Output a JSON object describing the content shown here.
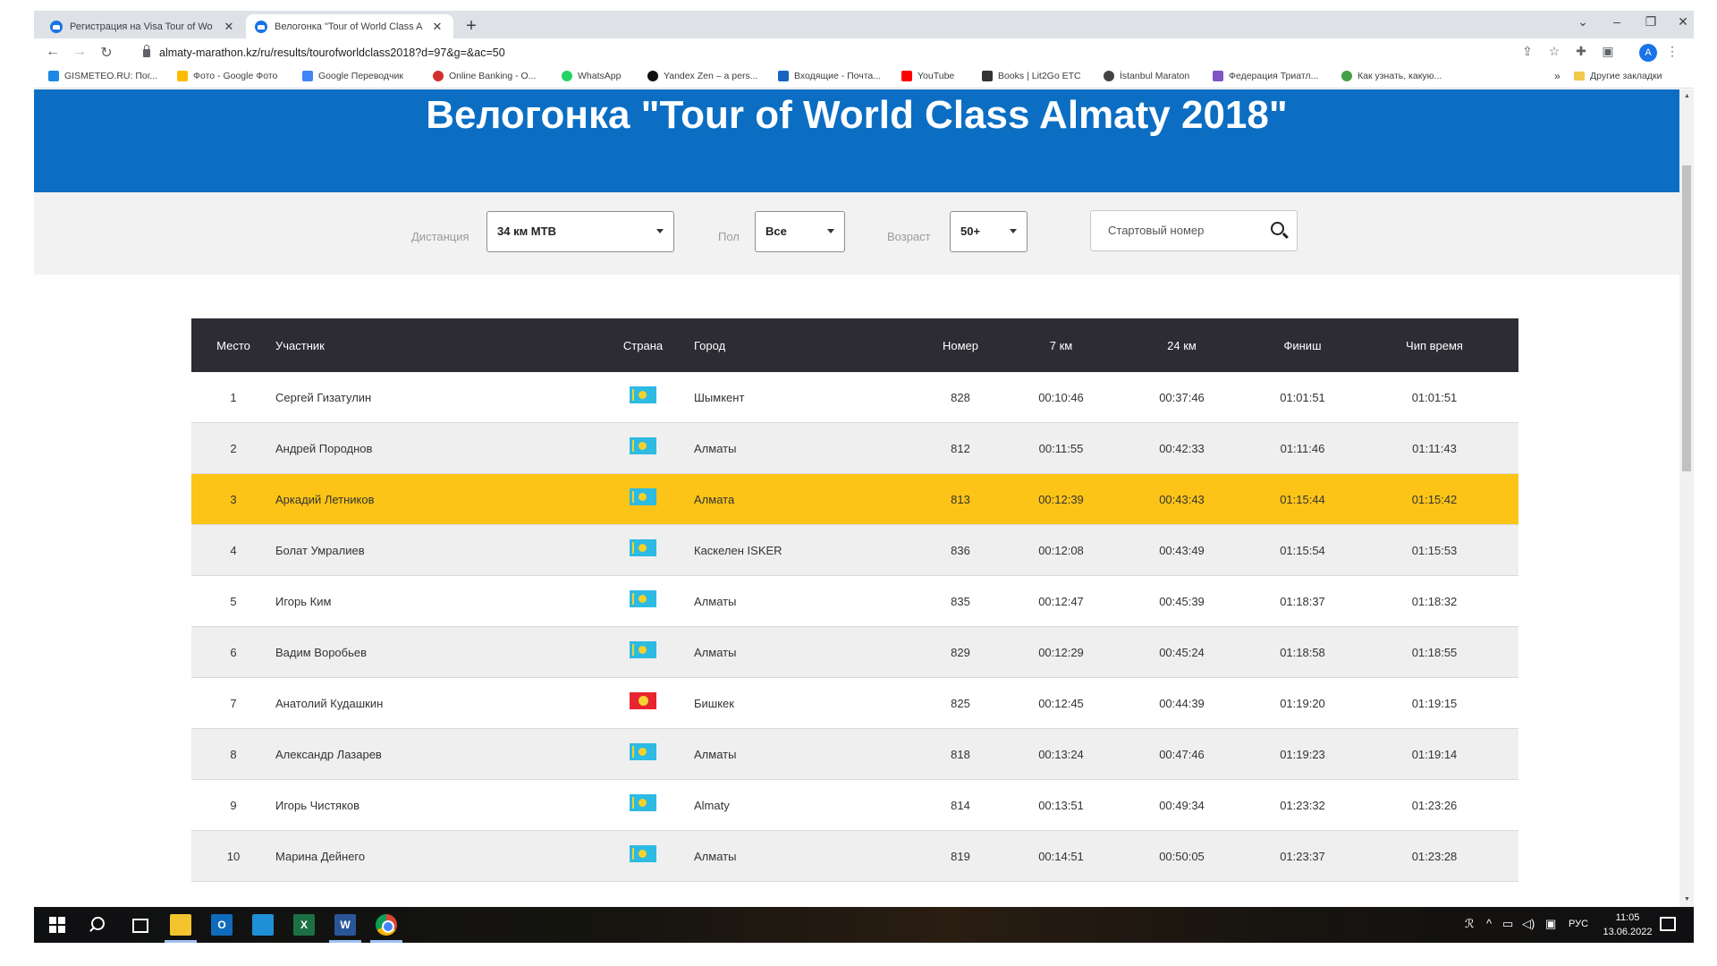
{
  "browser": {
    "tabs": [
      {
        "label": "Регистрация на Visa Tour of Wo"
      },
      {
        "label": "Велогонка \"Tour of World Class A"
      }
    ],
    "new_tab": "+",
    "url": "almaty-marathon.kz/ru/results/tourofworldclass2018?d=97&g=&ac=50",
    "avatar_letter": "A",
    "bookmarks": [
      {
        "label": "GISMETEO.RU: Пог...",
        "color": "#1e88e5"
      },
      {
        "label": "Фото - Google Фото",
        "color": "#fbbc04"
      },
      {
        "label": "Google Переводчик",
        "color": "#4285f4"
      },
      {
        "label": "Online Banking - О...",
        "color": "#d32f2f"
      },
      {
        "label": "WhatsApp",
        "color": "#25d366"
      },
      {
        "label": "Yandex Zen – a pers...",
        "color": "#111111"
      },
      {
        "label": "Входящие - Почта...",
        "color": "#1565c0"
      },
      {
        "label": "YouTube",
        "color": "#ff0000"
      },
      {
        "label": "Books | Lit2Go ETC",
        "color": "#333333"
      },
      {
        "label": "İstanbul Maraton",
        "color": "#444444"
      },
      {
        "label": "Федерация Триатл...",
        "color": "#7e57c2"
      },
      {
        "label": "Как узнать, какую...",
        "color": "#43a047"
      }
    ],
    "bookmarks_more": "»",
    "other_bookmarks": "Другие закладки"
  },
  "page": {
    "title": "Велогонка \"Tour of World Class Almaty 2018\"",
    "filters": {
      "distance_label": "Дистанция",
      "distance_value": "34 км МТВ",
      "gender_label": "Пол",
      "gender_value": "Все",
      "age_label": "Возраст",
      "age_value": "50+",
      "bib_placeholder": "Стартовый номер"
    },
    "table": {
      "headers": {
        "place": "Место",
        "name": "Участник",
        "country": "Страна",
        "city": "Город",
        "number": "Номер",
        "km7": "7 км",
        "km24": "24 км",
        "finish": "Финиш",
        "chip": "Чип время"
      },
      "rows": [
        {
          "place": "1",
          "name": "Сергей Гизатулин",
          "country": "kz",
          "city": "Шымкент",
          "number": "828",
          "km7": "00:10:46",
          "km24": "00:37:46",
          "finish": "01:01:51",
          "chip": "01:01:51"
        },
        {
          "place": "2",
          "name": "Андрей Породнов",
          "country": "kz",
          "city": "Алматы",
          "number": "812",
          "km7": "00:11:55",
          "km24": "00:42:33",
          "finish": "01:11:46",
          "chip": "01:11:43"
        },
        {
          "place": "3",
          "name": "Аркадий Летников",
          "country": "kz",
          "city": "Алмата",
          "number": "813",
          "km7": "00:12:39",
          "km24": "00:43:43",
          "finish": "01:15:44",
          "chip": "01:15:42"
        },
        {
          "place": "4",
          "name": "Болат Умралиев",
          "country": "kz",
          "city": "Каскелен ISKER",
          "number": "836",
          "km7": "00:12:08",
          "km24": "00:43:49",
          "finish": "01:15:54",
          "chip": "01:15:53"
        },
        {
          "place": "5",
          "name": "Игорь Ким",
          "country": "kz",
          "city": "Алматы",
          "number": "835",
          "km7": "00:12:47",
          "km24": "00:45:39",
          "finish": "01:18:37",
          "chip": "01:18:32"
        },
        {
          "place": "6",
          "name": "Вадим Воробьев",
          "country": "kz",
          "city": "Алматы",
          "number": "829",
          "km7": "00:12:29",
          "km24": "00:45:24",
          "finish": "01:18:58",
          "chip": "01:18:55"
        },
        {
          "place": "7",
          "name": "Анатолий Кудашкин",
          "country": "kg",
          "city": "Бишкек",
          "number": "825",
          "km7": "00:12:45",
          "km24": "00:44:39",
          "finish": "01:19:20",
          "chip": "01:19:15"
        },
        {
          "place": "8",
          "name": "Александр Лазарев",
          "country": "kz",
          "city": "Алматы",
          "number": "818",
          "km7": "00:13:24",
          "km24": "00:47:46",
          "finish": "01:19:23",
          "chip": "01:19:14"
        },
        {
          "place": "9",
          "name": "Игорь Чистяков",
          "country": "kz",
          "city": "Almaty",
          "number": "814",
          "km7": "00:13:51",
          "km24": "00:49:34",
          "finish": "01:23:32",
          "chip": "01:23:26"
        },
        {
          "place": "10",
          "name": "Марина Дейнего",
          "country": "kz",
          "city": "Алматы",
          "number": "819",
          "km7": "00:14:51",
          "km24": "00:50:05",
          "finish": "01:23:37",
          "chip": "01:23:28"
        }
      ],
      "highlight_color": "#fcc417"
    }
  },
  "taskbar": {
    "apps": [
      "windows-start",
      "search",
      "task-view",
      "file-explorer",
      "outlook",
      "mail",
      "excel",
      "word",
      "chrome"
    ],
    "app_letters": {
      "outlook": "O",
      "excel": "X",
      "word": "W"
    },
    "language": "РУС",
    "time": "11:05",
    "date": "13.06.2022"
  },
  "colors": {
    "hero": "#0b6ec3",
    "table_header": "#2d2b33",
    "highlight": "#fcc417"
  }
}
